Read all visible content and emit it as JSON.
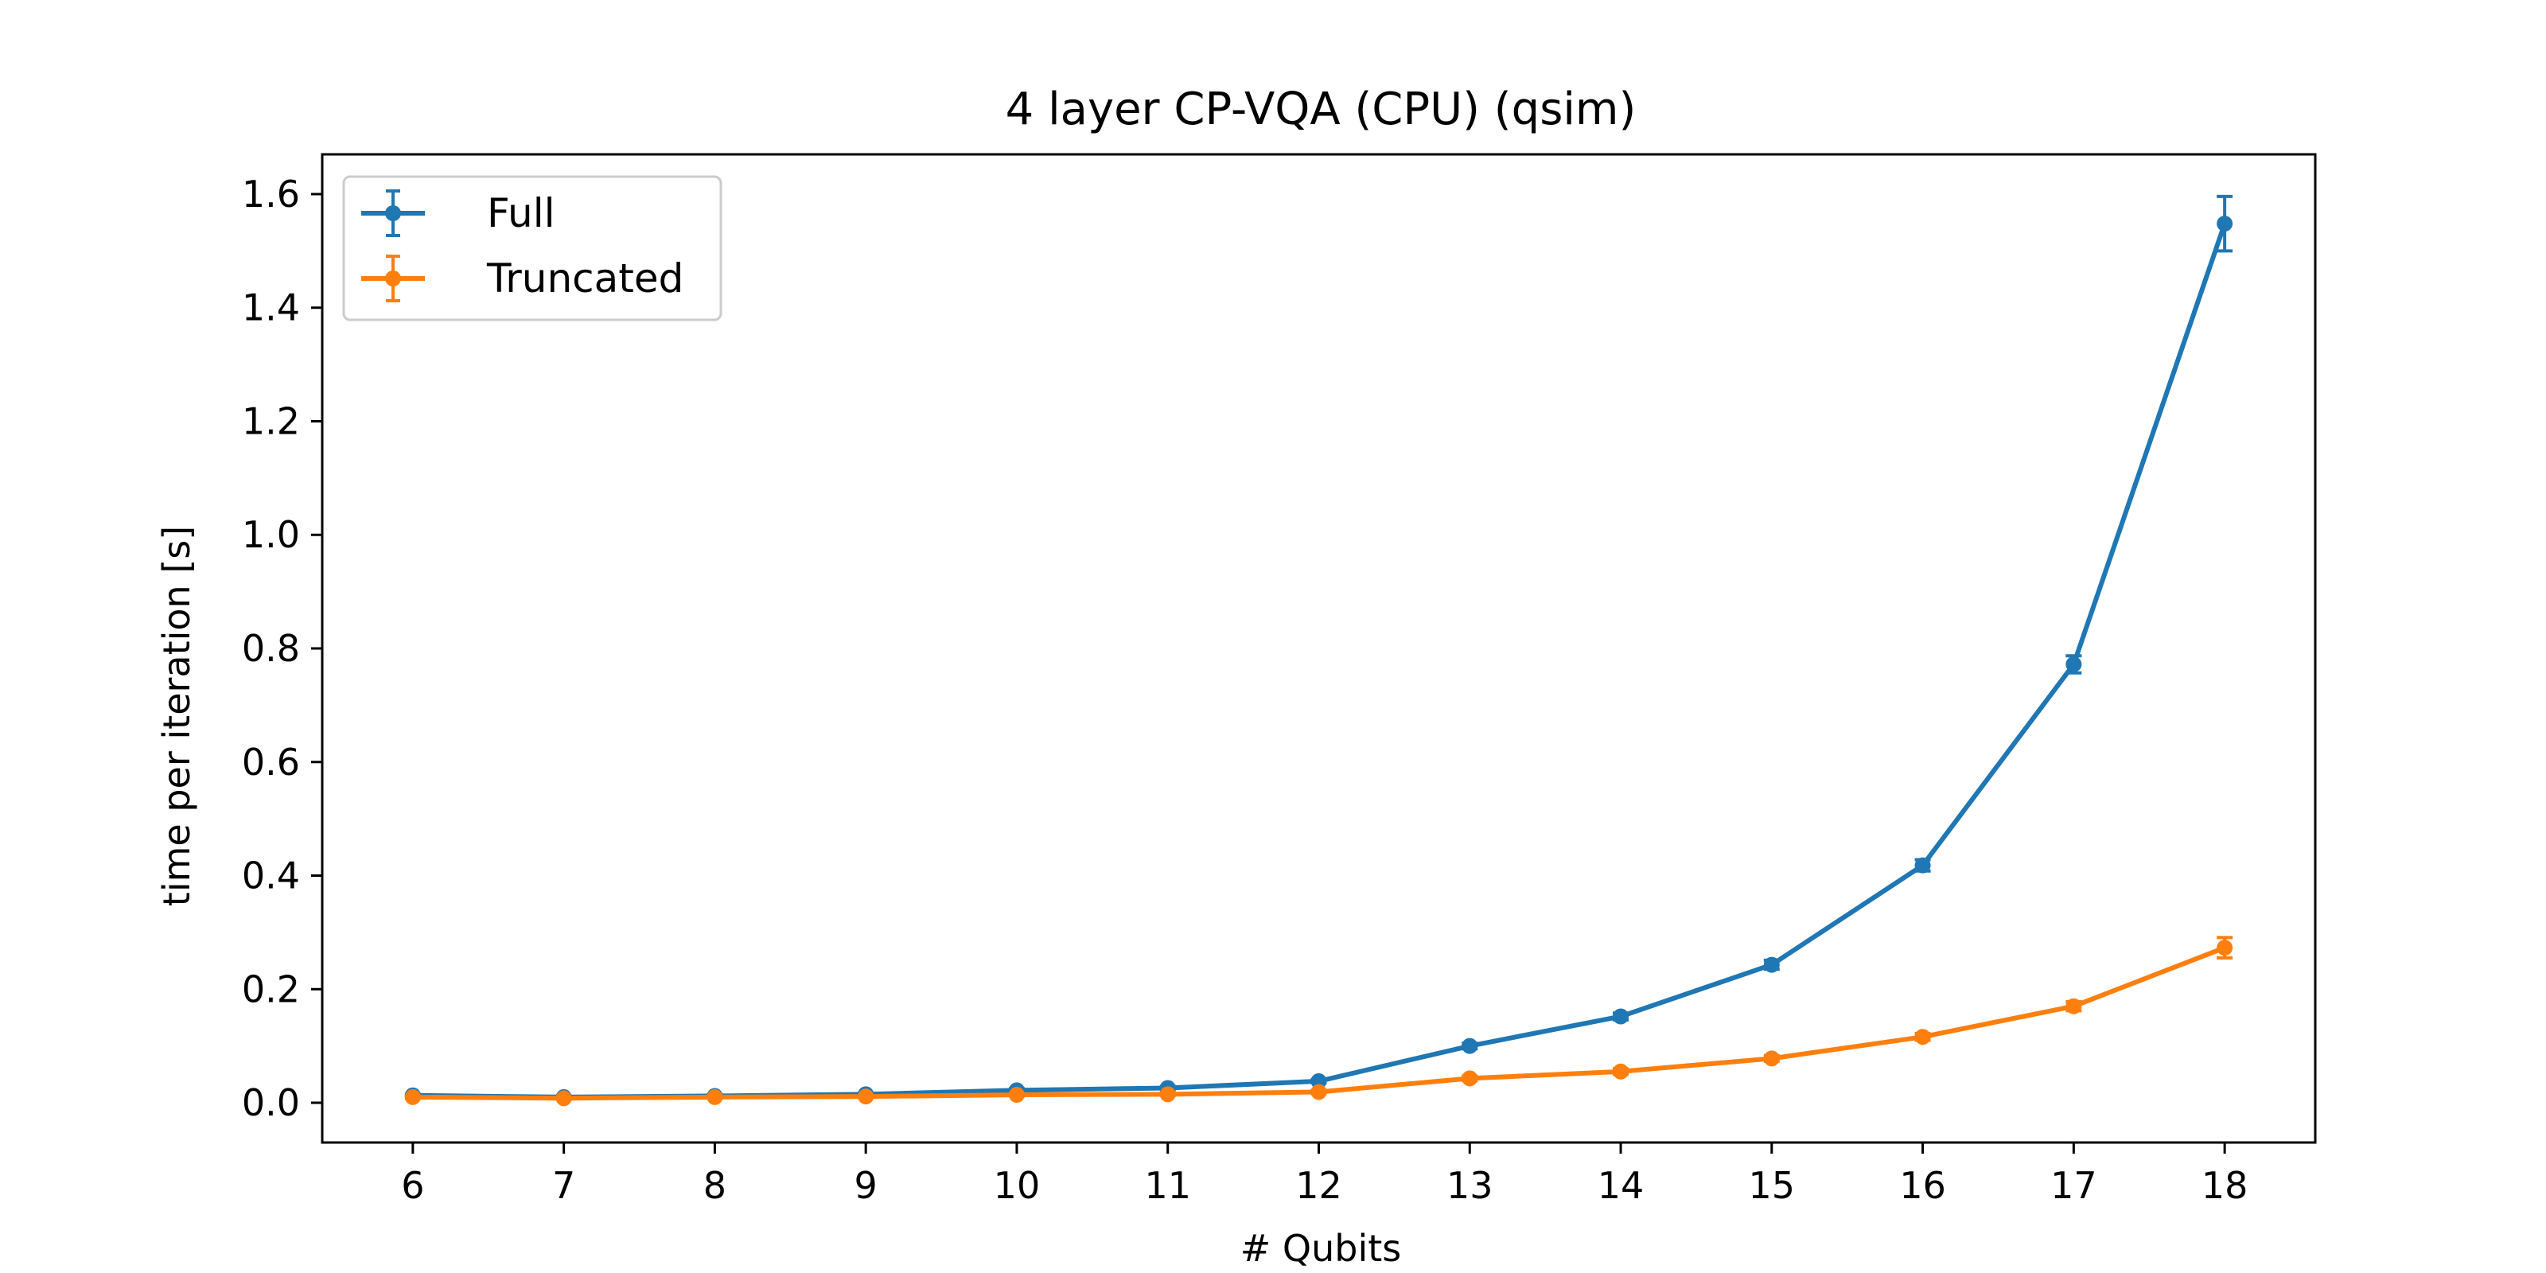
{
  "chart_data": {
    "type": "line",
    "title": "4 layer CP-VQA (CPU) (qsim)",
    "xlabel": "# Qubits",
    "ylabel": "time per iteration [s]",
    "xlim": [
      5.4,
      18.6
    ],
    "ylim": [
      -0.07,
      1.67
    ],
    "xticks": [
      6,
      7,
      8,
      9,
      10,
      11,
      12,
      13,
      14,
      15,
      16,
      17,
      18
    ],
    "yticks": [
      0.0,
      0.2,
      0.4,
      0.6,
      0.8,
      1.0,
      1.2,
      1.4,
      1.6
    ],
    "ytick_labels": [
      "0.0",
      "0.2",
      "0.4",
      "0.6",
      "0.8",
      "1.0",
      "1.2",
      "1.4",
      "1.6"
    ],
    "grid": false,
    "legend_position": "top-left",
    "x": [
      6,
      7,
      8,
      9,
      10,
      11,
      12,
      13,
      14,
      15,
      16,
      17,
      18
    ],
    "series": [
      {
        "name": "Full",
        "color": "#1f77b4",
        "values": [
          0.013,
          0.01,
          0.012,
          0.015,
          0.022,
          0.026,
          0.038,
          0.1,
          0.152,
          0.243,
          0.418,
          0.772,
          1.548
        ],
        "errors": [
          0.002,
          0.002,
          0.002,
          0.002,
          0.003,
          0.003,
          0.003,
          0.005,
          0.006,
          0.008,
          0.01,
          0.015,
          0.048
        ]
      },
      {
        "name": "Truncated",
        "color": "#ff7f0e",
        "values": [
          0.01,
          0.008,
          0.01,
          0.011,
          0.014,
          0.015,
          0.019,
          0.043,
          0.055,
          0.078,
          0.116,
          0.17,
          0.273
        ],
        "errors": [
          0.002,
          0.002,
          0.002,
          0.002,
          0.002,
          0.002,
          0.003,
          0.004,
          0.005,
          0.005,
          0.006,
          0.008,
          0.018
        ]
      }
    ]
  }
}
